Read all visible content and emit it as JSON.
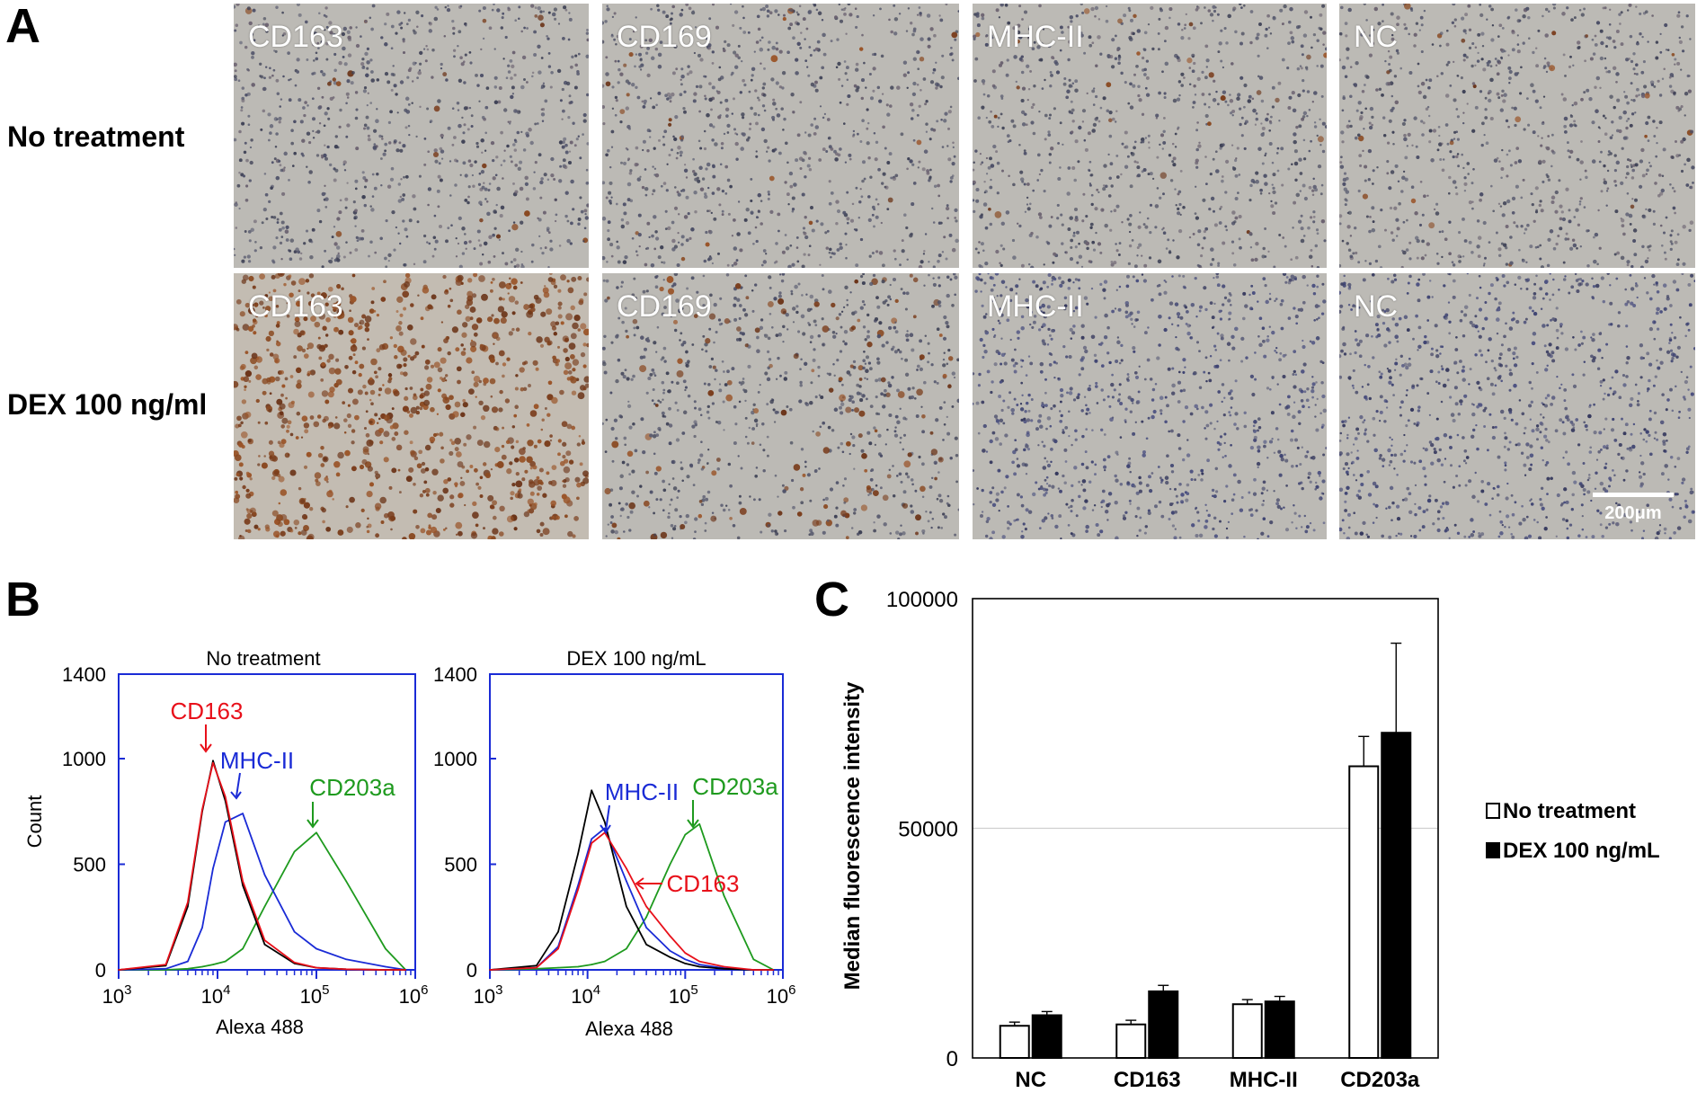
{
  "panel_a": {
    "letter": "A",
    "rows": [
      {
        "label": "No treatment",
        "tiles": [
          {
            "label": "CD163",
            "tone": "light"
          },
          {
            "label": "CD169",
            "tone": "light"
          },
          {
            "label": "MHC-II",
            "tone": "light"
          },
          {
            "label": "NC",
            "tone": "light"
          }
        ]
      },
      {
        "label": "DEX 100 ng/ml",
        "tiles": [
          {
            "label": "CD163",
            "tone": "heavy-brown"
          },
          {
            "label": "CD169",
            "tone": "some-brown"
          },
          {
            "label": "MHC-II",
            "tone": "blue"
          },
          {
            "label": "NC",
            "tone": "blue"
          }
        ]
      }
    ],
    "scale_bar": "200μm"
  },
  "panel_b": {
    "letter": "B",
    "colors": {
      "CD163": "#e8101a",
      "MHC-II": "#1a2bd6",
      "CD203a": "#1e9a1e",
      "NC": "#000000",
      "frame": "#1a2bd6"
    },
    "y_ticks": [
      "1400",
      "1000",
      "500",
      "0"
    ],
    "x_ticks": [
      "10",
      "10",
      "10",
      "10"
    ],
    "x_exps": [
      "3",
      "4",
      "5",
      "6"
    ],
    "y_label": "Count",
    "x_label": "Alexa 488",
    "plots": [
      {
        "title": "No treatment",
        "annotations": [
          "CD163",
          "MHC-II",
          "CD203a"
        ]
      },
      {
        "title": "DEX 100 ng/mL",
        "annotations": [
          "MHC-II",
          "CD203a",
          "CD163"
        ]
      }
    ]
  },
  "chart_data": [
    {
      "type": "line",
      "title": "No treatment",
      "xlabel": "Alexa 488",
      "ylabel": "Count",
      "xscale": "log",
      "xlim": [
        1000,
        1000000
      ],
      "ylim": [
        0,
        1400
      ],
      "x": [
        1000,
        3000,
        5000,
        7000,
        9000,
        12000,
        18000,
        30000,
        60000,
        100000,
        200000,
        500000,
        800000
      ],
      "series": [
        {
          "name": "NC",
          "values": [
            0,
            20,
            300,
            750,
            990,
            800,
            400,
            120,
            30,
            10,
            3,
            0,
            0
          ]
        },
        {
          "name": "CD163",
          "values": [
            0,
            25,
            320,
            760,
            980,
            820,
            420,
            140,
            35,
            10,
            3,
            0,
            0
          ]
        },
        {
          "name": "MHC-II",
          "values": [
            0,
            5,
            40,
            200,
            480,
            700,
            740,
            450,
            180,
            100,
            50,
            15,
            0
          ]
        },
        {
          "name": "CD203a",
          "values": [
            0,
            0,
            5,
            15,
            25,
            40,
            100,
            300,
            560,
            650,
            420,
            100,
            0
          ]
        }
      ]
    },
    {
      "type": "line",
      "title": "DEX 100 ng/mL",
      "xlabel": "Alexa 488",
      "ylabel": "Count",
      "xscale": "log",
      "xlim": [
        1000,
        1000000
      ],
      "ylim": [
        0,
        1400
      ],
      "x": [
        1000,
        3000,
        5000,
        8000,
        11000,
        15000,
        25000,
        40000,
        70000,
        100000,
        140000,
        250000,
        500000,
        800000
      ],
      "series": [
        {
          "name": "NC",
          "values": [
            0,
            20,
            180,
            550,
            850,
            700,
            300,
            120,
            60,
            30,
            15,
            5,
            0,
            0
          ]
        },
        {
          "name": "CD163",
          "values": [
            0,
            10,
            100,
            380,
            600,
            650,
            480,
            300,
            160,
            80,
            40,
            15,
            0,
            0
          ]
        },
        {
          "name": "MHC-II",
          "values": [
            0,
            10,
            110,
            400,
            620,
            670,
            420,
            200,
            90,
            50,
            25,
            8,
            0,
            0
          ]
        },
        {
          "name": "CD203a",
          "values": [
            0,
            5,
            10,
            15,
            25,
            40,
            100,
            250,
            500,
            640,
            690,
            350,
            50,
            0
          ]
        }
      ]
    },
    {
      "type": "bar",
      "title": "",
      "xlabel": "",
      "ylabel": "Median fluorescence intensity",
      "ylim": [
        0,
        100000
      ],
      "y_ticks": [
        "100000",
        "50000",
        "0"
      ],
      "categories": [
        "NC",
        "CD163",
        "MHC-II",
        "CD203a"
      ],
      "series": [
        {
          "name": "No treatment",
          "color": "#ffffff",
          "values": [
            7000,
            7300,
            11700,
            63500
          ],
          "errors": [
            800,
            900,
            1000,
            6500
          ]
        },
        {
          "name": "DEX 100 ng/mL",
          "color": "#000000",
          "values": [
            9300,
            14500,
            12300,
            70800
          ],
          "errors": [
            800,
            1300,
            1100,
            19500
          ]
        }
      ],
      "grid": true,
      "legend": "right"
    }
  ]
}
